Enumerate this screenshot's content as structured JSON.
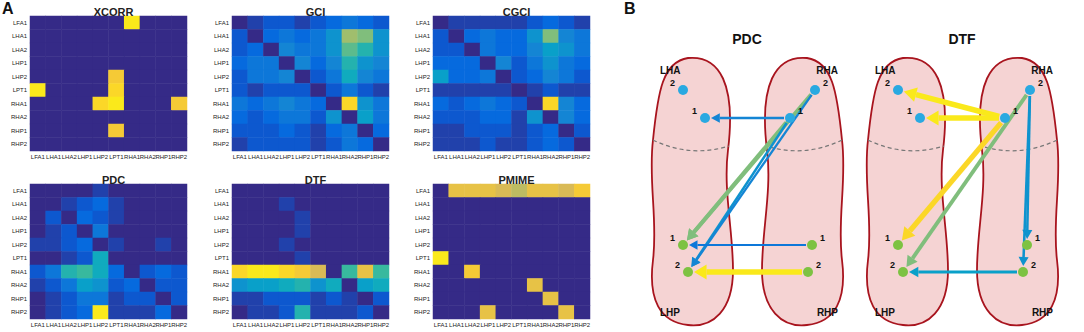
{
  "panel_labels": [
    "A",
    "B"
  ],
  "chart_data": [
    {
      "type": "heatmap",
      "title": "XCORR",
      "categories": [
        "LFA1",
        "LHA1",
        "LHA2",
        "LHP1",
        "LHP2",
        "LPT1",
        "RHA1",
        "RHA2",
        "RHP1",
        "RHP2"
      ],
      "y_categories": [
        "LFA1",
        "LHA1",
        "LHA2",
        "LHP1",
        "LHP2",
        "LPT1",
        "RHA1",
        "RHA2",
        "RHP1",
        "RHP2"
      ],
      "color_range": [
        0,
        1
      ],
      "cells": [
        [
          0,
          0,
          0,
          0,
          0,
          0,
          0.95,
          0,
          0,
          0
        ],
        [
          0,
          0,
          0,
          0,
          0,
          0,
          0,
          0,
          0,
          0
        ],
        [
          0,
          0,
          0,
          0,
          0,
          0,
          0,
          0,
          0,
          0
        ],
        [
          0,
          0,
          0,
          0,
          0,
          0,
          0,
          0,
          0,
          0
        ],
        [
          0,
          0,
          0,
          0,
          0,
          0.85,
          0,
          0,
          0,
          0
        ],
        [
          0.95,
          0,
          0,
          0,
          0,
          0.9,
          0,
          0,
          0,
          0
        ],
        [
          0,
          0,
          0,
          0,
          0.9,
          0.95,
          0,
          0,
          0,
          0.85
        ],
        [
          0,
          0,
          0,
          0,
          0,
          0,
          0,
          0,
          0,
          0
        ],
        [
          0,
          0,
          0,
          0,
          0,
          0.85,
          0,
          0,
          0,
          0
        ],
        [
          0,
          0,
          0,
          0,
          0,
          0,
          0,
          0,
          0,
          0
        ]
      ]
    },
    {
      "type": "heatmap",
      "title": "GCI",
      "categories": [
        "LFA1",
        "LHA1",
        "LHA2",
        "LHP1",
        "LHP2",
        "LPT1",
        "RHA1",
        "RHA2",
        "RHP1",
        "RHP2"
      ],
      "y_categories": [
        "LFA1",
        "LHA1",
        "LHA2",
        "LHP1",
        "LHP2",
        "LPT1",
        "RHA1",
        "RHA2",
        "RHP1",
        "RHP2"
      ],
      "color_range": [
        0,
        1
      ],
      "cells": [
        [
          0,
          0.05,
          0.1,
          0.1,
          0.05,
          0.1,
          0.15,
          0.2,
          0.15,
          0.1
        ],
        [
          0.1,
          0,
          0.15,
          0.2,
          0.15,
          0.2,
          0.3,
          0.65,
          0.6,
          0.3
        ],
        [
          0.1,
          0.15,
          0,
          0.25,
          0.2,
          0.2,
          0.3,
          0.55,
          0.45,
          0.3
        ],
        [
          0.15,
          0.2,
          0.2,
          0,
          0.25,
          0.15,
          0.25,
          0.45,
          0.3,
          0.25
        ],
        [
          0.1,
          0.2,
          0.2,
          0.25,
          0,
          0.1,
          0.2,
          0.4,
          0.25,
          0.2
        ],
        [
          0.1,
          0.05,
          0.1,
          0.1,
          0.1,
          0,
          0.1,
          0.2,
          0.1,
          0.05
        ],
        [
          0.2,
          0.15,
          0.2,
          0.25,
          0.2,
          0.15,
          0,
          0.9,
          0.3,
          0.2
        ],
        [
          0.15,
          0.1,
          0.15,
          0.2,
          0.2,
          0.1,
          0.3,
          0,
          0.35,
          0.2
        ],
        [
          0.1,
          0.1,
          0.1,
          0.15,
          0.1,
          0.05,
          0.15,
          0.2,
          0,
          0.15
        ],
        [
          0.05,
          0.1,
          0.1,
          0.1,
          0.1,
          0.05,
          0.1,
          0.2,
          0.15,
          0
        ]
      ]
    },
    {
      "type": "heatmap",
      "title": "CGCI",
      "categories": [
        "LFA1",
        "LHA1",
        "LHA2",
        "LHP1",
        "LHP2",
        "LPT1",
        "RHA1",
        "RHA2",
        "RHP1",
        "RHP2"
      ],
      "y_categories": [
        "LFA1",
        "LHA1",
        "LHA2",
        "LHP1",
        "LHP2",
        "LPT1",
        "RHA1",
        "RHA2",
        "RHP1",
        "RHP2"
      ],
      "color_range": [
        0,
        1
      ],
      "cells": [
        [
          0,
          0.05,
          0.05,
          0.05,
          0.05,
          0.05,
          0.1,
          0.15,
          0.1,
          0.05
        ],
        [
          0.1,
          0,
          0.15,
          0.2,
          0.15,
          0.15,
          0.3,
          0.6,
          0.25,
          0.2
        ],
        [
          0.1,
          0.1,
          0,
          0.2,
          0.15,
          0.15,
          0.25,
          0.35,
          0.3,
          0.2
        ],
        [
          0.15,
          0.15,
          0.15,
          0,
          0.25,
          0.1,
          0.2,
          0.3,
          0.2,
          0.15
        ],
        [
          0.35,
          0.15,
          0.15,
          0.2,
          0,
          0.1,
          0.15,
          0.25,
          0.2,
          0.1
        ],
        [
          0.05,
          0.05,
          0.05,
          0.05,
          0.05,
          0,
          0.05,
          0.1,
          0.05,
          0.05
        ],
        [
          0.15,
          0.1,
          0.15,
          0.2,
          0.15,
          0.1,
          0,
          0.9,
          0.25,
          0.15
        ],
        [
          0.1,
          0.1,
          0.1,
          0.15,
          0.15,
          0.05,
          0.3,
          0,
          0.25,
          0.15
        ],
        [
          0.05,
          0.05,
          0.1,
          0.1,
          0.1,
          0.05,
          0.1,
          0.15,
          0,
          0.1
        ],
        [
          0.05,
          0.05,
          0.05,
          0.1,
          0.05,
          0.05,
          0.1,
          0.15,
          0.1,
          0
        ]
      ]
    },
    {
      "type": "heatmap",
      "title": "PDC",
      "categories": [
        "LFA1",
        "LHA1",
        "LHA2",
        "LHP1",
        "LHP2",
        "LPT1",
        "RHA1",
        "RHA2",
        "RHP1",
        "RHP2"
      ],
      "y_categories": [
        "LFA1",
        "LHA1",
        "LHA2",
        "LHP1",
        "LHP2",
        "LPT1",
        "RHA1",
        "RHA2",
        "RHP1",
        "RHP2"
      ],
      "color_range": [
        0,
        1
      ],
      "cells": [
        [
          0,
          0,
          0,
          0,
          0.05,
          0,
          0,
          0,
          0,
          0
        ],
        [
          0,
          0,
          0.05,
          0.1,
          0.15,
          0.05,
          0,
          0,
          0,
          0
        ],
        [
          0,
          0.1,
          0,
          0.15,
          0.1,
          0.05,
          0,
          0,
          0,
          0
        ],
        [
          0,
          0.05,
          0.1,
          0,
          0.2,
          0,
          0,
          0,
          0,
          0
        ],
        [
          0.05,
          0.05,
          0.1,
          0.15,
          0,
          0.05,
          0,
          0,
          0.05,
          0
        ],
        [
          0,
          0,
          0.05,
          0.1,
          0.4,
          0,
          0,
          0,
          0,
          0
        ],
        [
          0.1,
          0.2,
          0.45,
          0.5,
          0.4,
          0.15,
          0,
          0.1,
          0.15,
          0.1
        ],
        [
          0.05,
          0.1,
          0.2,
          0.35,
          0.3,
          0.1,
          0.15,
          0,
          0.1,
          0.1
        ],
        [
          0,
          0.05,
          0.1,
          0.2,
          0.2,
          0.05,
          0.1,
          0.1,
          0,
          0.1
        ],
        [
          0,
          0.05,
          0.1,
          0.15,
          0.95,
          0.05,
          0.05,
          0.05,
          0.15,
          0
        ]
      ]
    },
    {
      "type": "heatmap",
      "title": "DTF",
      "categories": [
        "LFA1",
        "LHA1",
        "LHA2",
        "LHP1",
        "LHP2",
        "LPT1",
        "RHA1",
        "RHA2",
        "RHP1",
        "RHP2"
      ],
      "y_categories": [
        "LFA1",
        "LHA1",
        "LHA2",
        "LHP1",
        "LHP2",
        "LPT1",
        "RHA1",
        "RHA2",
        "RHP1",
        "RHP2"
      ],
      "color_range": [
        0,
        1
      ],
      "cells": [
        [
          0,
          0,
          0,
          0,
          0,
          0,
          0,
          0,
          0,
          0
        ],
        [
          0,
          0,
          0,
          0.05,
          0,
          0,
          0,
          0,
          0,
          0
        ],
        [
          0,
          0,
          0,
          0,
          0.05,
          0,
          0,
          0,
          0,
          0
        ],
        [
          0,
          0,
          0,
          0,
          0.05,
          0,
          0,
          0,
          0,
          0
        ],
        [
          0,
          0,
          0,
          0.05,
          0,
          0,
          0,
          0,
          0,
          0
        ],
        [
          0,
          0,
          0,
          0,
          0.05,
          0,
          0,
          0,
          0,
          0
        ],
        [
          0.9,
          0.95,
          0.95,
          0.9,
          0.85,
          0.75,
          0,
          0.5,
          0.8,
          0.5
        ],
        [
          0.3,
          0.35,
          0.35,
          0.4,
          0.45,
          0.3,
          0.4,
          0,
          0.35,
          0.4
        ],
        [
          0.05,
          0.05,
          0.1,
          0.1,
          0.1,
          0.05,
          0.1,
          0.05,
          0,
          0.1
        ],
        [
          0,
          0.05,
          0.05,
          0.1,
          0.45,
          0.05,
          0.05,
          0.05,
          0.1,
          0
        ]
      ]
    },
    {
      "type": "heatmap",
      "title": "PMIME",
      "categories": [
        "LFA1",
        "LHA1",
        "LHA2",
        "LHP1",
        "LHP2",
        "LPT1",
        "RHA1",
        "RHA2",
        "RHP1",
        "RHP2"
      ],
      "y_categories": [
        "LFA1",
        "LHA1",
        "LHA2",
        "LHP1",
        "LHP2",
        "LPT1",
        "RHA1",
        "RHA2",
        "RHP1",
        "RHP2"
      ],
      "color_range": [
        0,
        1
      ],
      "cells": [
        [
          0,
          0.8,
          0.8,
          0.8,
          0.75,
          0.7,
          0.8,
          0.8,
          0.75,
          0.85
        ],
        [
          0,
          0,
          0,
          0,
          0,
          0,
          0,
          0,
          0,
          0
        ],
        [
          0,
          0,
          0,
          0,
          0,
          0,
          0,
          0,
          0,
          0
        ],
        [
          0,
          0,
          0,
          0,
          0,
          0,
          0,
          0,
          0,
          0
        ],
        [
          0,
          0,
          0,
          0,
          0,
          0,
          0,
          0,
          0,
          0
        ],
        [
          0.95,
          0,
          0,
          0,
          0,
          0,
          0,
          0,
          0,
          0
        ],
        [
          0,
          0,
          0.85,
          0,
          0,
          0,
          0,
          0,
          0,
          0
        ],
        [
          0,
          0,
          0,
          0,
          0,
          0,
          0.8,
          0,
          0,
          0
        ],
        [
          0,
          0,
          0,
          0,
          0,
          0,
          0,
          0.8,
          0,
          0
        ],
        [
          0,
          0,
          0,
          0.8,
          0,
          0,
          0,
          0,
          0.8,
          0
        ]
      ]
    }
  ],
  "diagrams": [
    {
      "title": "PDC",
      "strength_range": [
        0,
        1
      ],
      "regions": [
        "LHA",
        "RHA",
        "LHP",
        "RHP"
      ],
      "nodes": [
        {
          "id": "LHA2",
          "label": "2",
          "color": "#29a9e1"
        },
        {
          "id": "LHA1",
          "label": "1",
          "color": "#29a9e1"
        },
        {
          "id": "RHA1",
          "label": "1",
          "color": "#29a9e1"
        },
        {
          "id": "RHA2",
          "label": "2",
          "color": "#29a9e1"
        },
        {
          "id": "LHP1",
          "label": "1",
          "color": "#7dc242"
        },
        {
          "id": "LHP2",
          "label": "2",
          "color": "#7dc242"
        },
        {
          "id": "RHP1",
          "label": "1",
          "color": "#7dc242"
        },
        {
          "id": "RHP2",
          "label": "2",
          "color": "#7dc242"
        }
      ],
      "edges": [
        {
          "from": "RHA1",
          "to": "LHA1",
          "strength": 0.25
        },
        {
          "from": "RHA1",
          "to": "LHP1",
          "strength": 0.6
        },
        {
          "from": "RHA2",
          "to": "LHP1",
          "strength": 0.6
        },
        {
          "from": "RHA1",
          "to": "LHP2",
          "strength": 0.3
        },
        {
          "from": "RHA2",
          "to": "LHP2",
          "strength": 0.25
        },
        {
          "from": "RHP1",
          "to": "LHP1",
          "strength": 0.2
        },
        {
          "from": "RHP2",
          "to": "LHP2",
          "strength": 0.95
        }
      ]
    },
    {
      "title": "DTF",
      "strength_range": [
        0,
        1
      ],
      "regions": [
        "LHA",
        "RHA",
        "LHP",
        "RHP"
      ],
      "nodes": [
        {
          "id": "LHA2",
          "label": "2",
          "color": "#29a9e1"
        },
        {
          "id": "LHA1",
          "label": "1",
          "color": "#29a9e1"
        },
        {
          "id": "RHA1",
          "label": "1",
          "color": "#29a9e1"
        },
        {
          "id": "RHA2",
          "label": "2",
          "color": "#29a9e1"
        },
        {
          "id": "LHP1",
          "label": "1",
          "color": "#7dc242"
        },
        {
          "id": "LHP2",
          "label": "2",
          "color": "#7dc242"
        },
        {
          "id": "RHP1",
          "label": "1",
          "color": "#7dc242"
        },
        {
          "id": "RHP2",
          "label": "2",
          "color": "#7dc242"
        }
      ],
      "edges": [
        {
          "from": "RHA1",
          "to": "LHA2",
          "strength": 0.95
        },
        {
          "from": "RHA1",
          "to": "LHA1",
          "strength": 0.95
        },
        {
          "from": "RHA1",
          "to": "LHP1",
          "strength": 0.9
        },
        {
          "from": "RHA2",
          "to": "LHP2",
          "strength": 0.6
        },
        {
          "from": "RHA2",
          "to": "RHP1",
          "strength": 0.3
        },
        {
          "from": "RHA2",
          "to": "RHP2",
          "strength": 0.3
        },
        {
          "from": "RHP2",
          "to": "LHP2",
          "strength": 0.35
        }
      ]
    }
  ]
}
